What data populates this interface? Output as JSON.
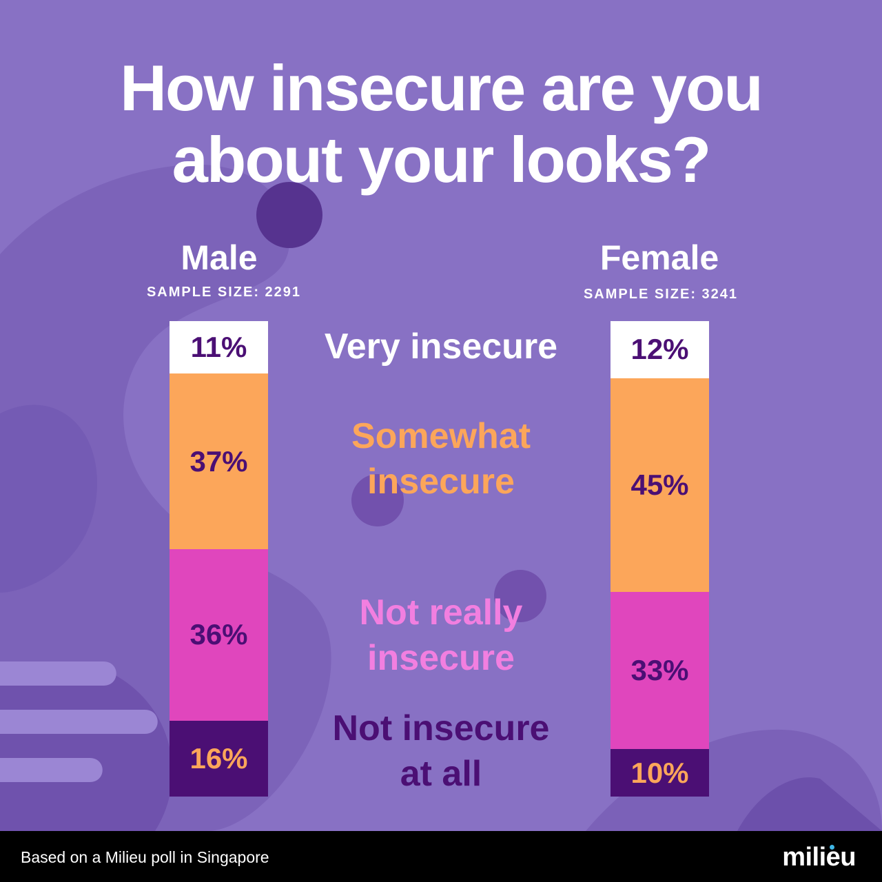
{
  "title": {
    "line1": "How insecure are you",
    "line2": "about your looks?"
  },
  "groups": {
    "male": {
      "name": "Male",
      "sample": "SAMPLE SIZE: 2291"
    },
    "female": {
      "name": "Female",
      "sample": "SAMPLE SIZE: 3241"
    }
  },
  "categories": {
    "very": {
      "line1": "Very insecure"
    },
    "somewhat": {
      "line1": "Somewhat",
      "line2": "insecure"
    },
    "notreally": {
      "line1": "Not really",
      "line2": "insecure"
    },
    "notatall": {
      "line1": "Not insecure",
      "line2": "at all"
    }
  },
  "colors": {
    "background": "#8871c4",
    "very": "#ffffff",
    "somewhat": "#fca65a",
    "not_really": "#e046bd",
    "not_at_all": "#4b0f74",
    "dark_text": "#4b0f74",
    "somewhat_label": "#fca65a",
    "not_really_label": "#f27fe0",
    "not_at_all_label": "#4b0f74"
  },
  "chart_data": {
    "type": "bar",
    "stacked": true,
    "orientation": "vertical",
    "categories": [
      "Male",
      "Female"
    ],
    "series": [
      {
        "name": "Very insecure",
        "values": [
          11,
          12
        ],
        "labels": [
          "11%",
          "12%"
        ],
        "color": "#ffffff",
        "label_color": "#4b0f74"
      },
      {
        "name": "Somewhat insecure",
        "values": [
          37,
          45
        ],
        "labels": [
          "37%",
          "45%"
        ],
        "color": "#fca65a",
        "label_color": "#4b0f74"
      },
      {
        "name": "Not really insecure",
        "values": [
          36,
          33
        ],
        "labels": [
          "36%",
          "33%"
        ],
        "color": "#e046bd",
        "label_color": "#4b0f74"
      },
      {
        "name": "Not insecure at all",
        "values": [
          16,
          10
        ],
        "labels": [
          "16%",
          "10%"
        ],
        "color": "#4b0f74",
        "label_color": "#fca65a"
      }
    ],
    "title": "How insecure are you about your looks?",
    "ylim": [
      0,
      100
    ]
  },
  "footer": {
    "note": "Based on a Milieu poll in Singapore",
    "brand": "milieu"
  }
}
